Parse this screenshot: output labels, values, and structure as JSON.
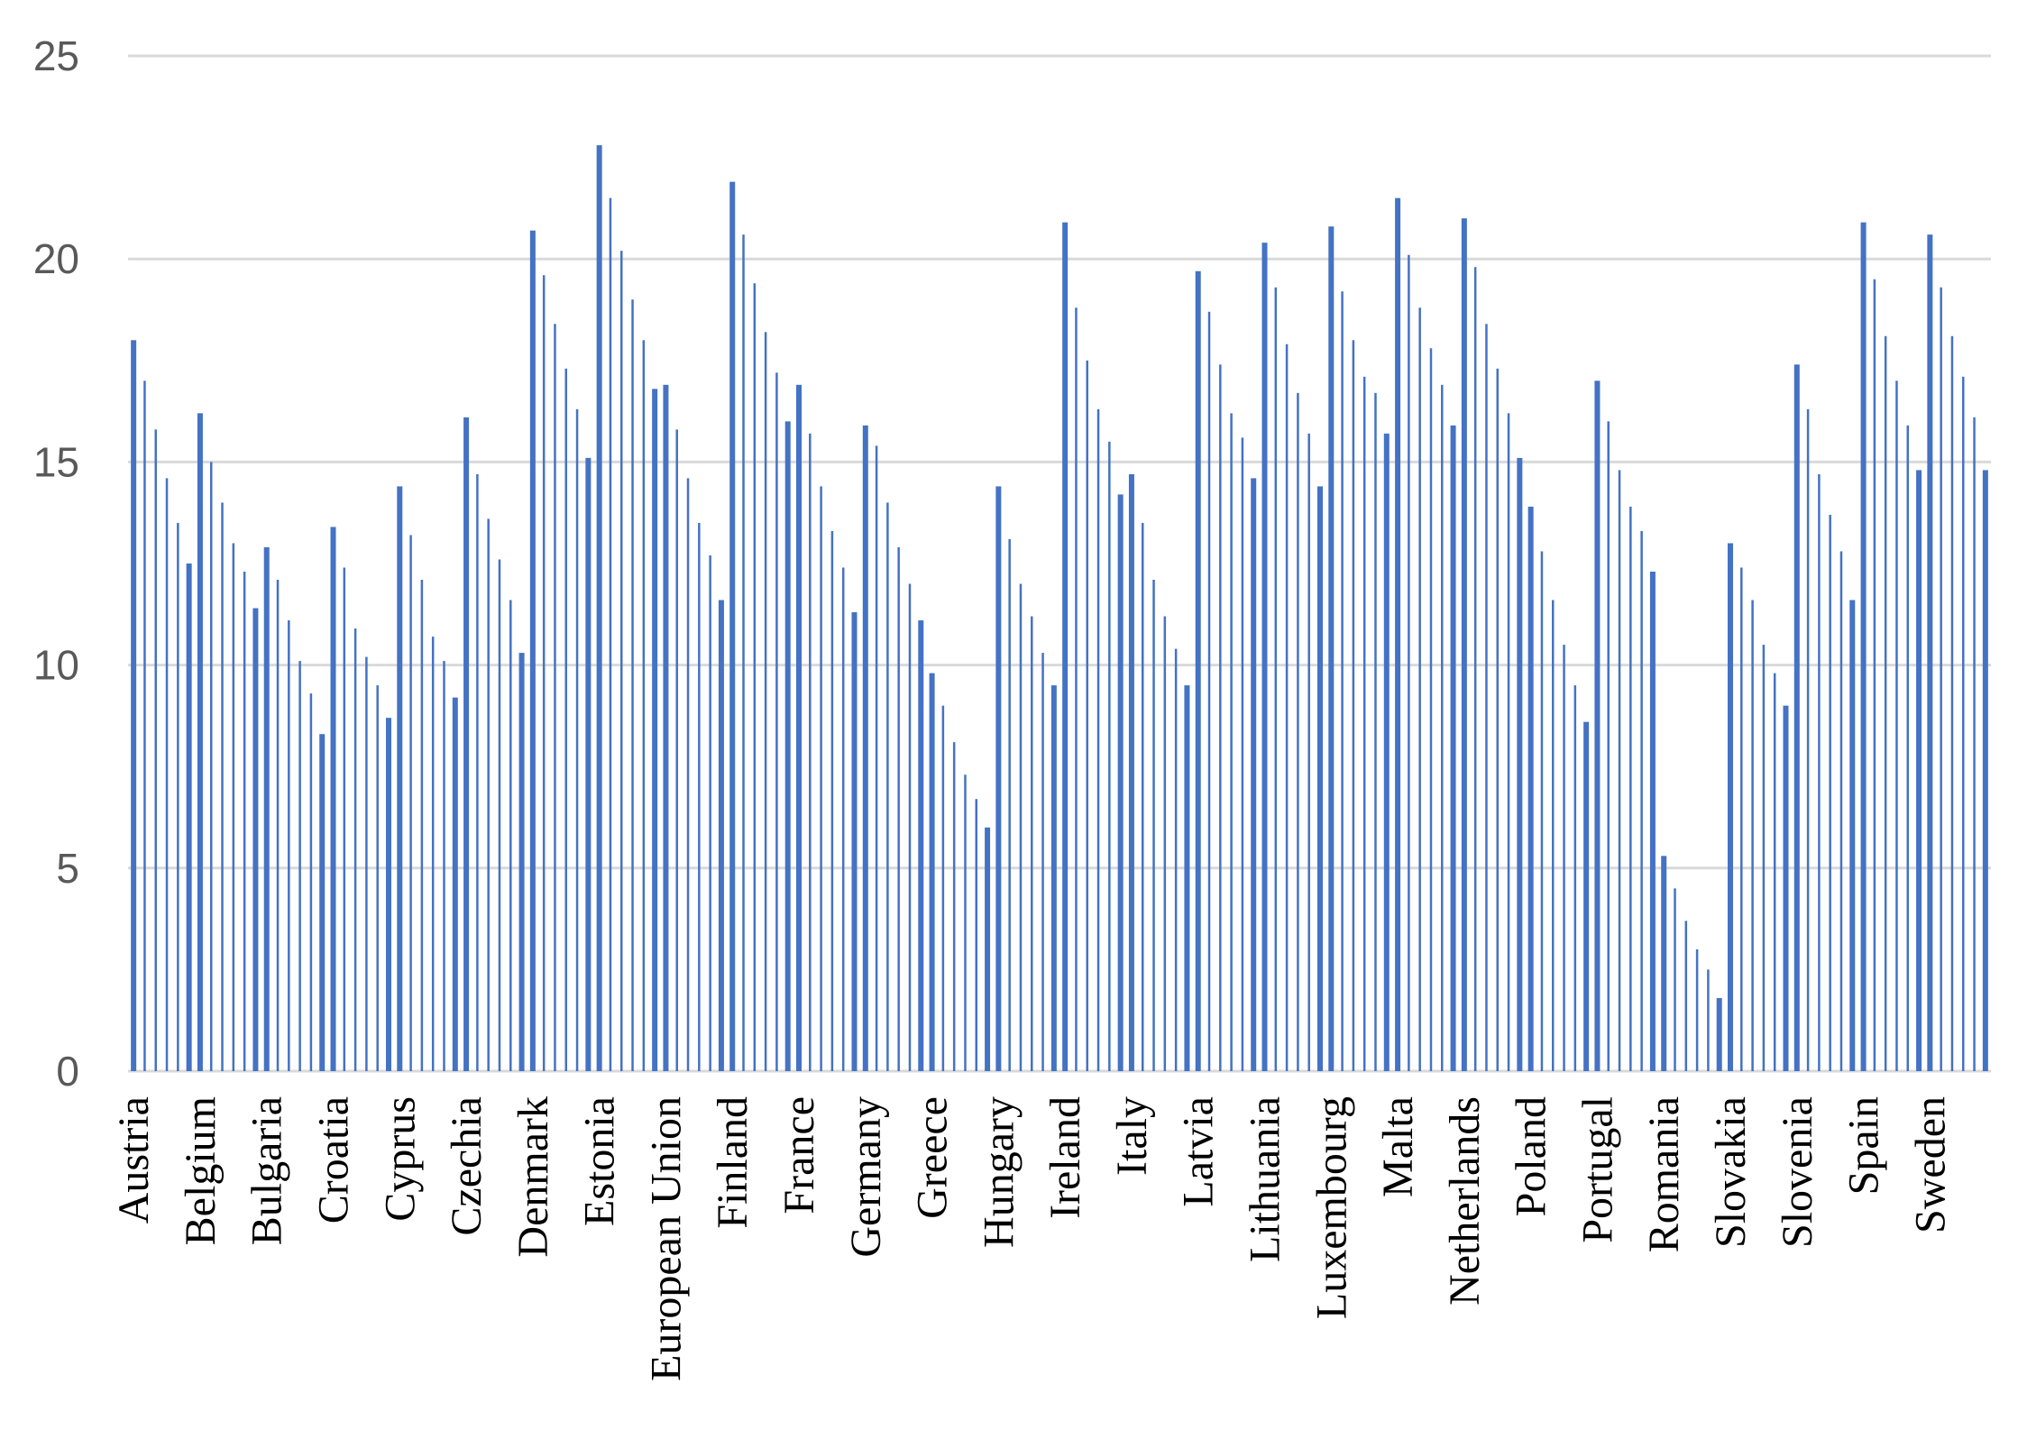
{
  "chart_data": {
    "type": "bar",
    "title": "",
    "xlabel": "",
    "ylabel": "",
    "ylim": [
      0,
      25
    ],
    "yticks": [
      0,
      5,
      10,
      15,
      20,
      25
    ],
    "grid": true,
    "legend": "none",
    "bar_color": "#4472c4",
    "grid_color": "#d9d9d9",
    "categories": [
      "Austria",
      "Belgium",
      "Bulgaria",
      "Croatia",
      "Cyprus",
      "Czechia",
      "Denmark",
      "Estonia",
      "European Union",
      "Finland",
      "France",
      "Germany",
      "Greece",
      "Hungary",
      "Ireland",
      "Italy",
      "Latvia",
      "Lithuania",
      "Luxembourg",
      "Malta",
      "Netherlands",
      "Poland",
      "Portugal",
      "Romania",
      "Slovakia",
      "Slovenia",
      "Spain",
      "Sweden"
    ],
    "values": [
      [
        18.0,
        17.0,
        15.8,
        14.6,
        13.5,
        12.5
      ],
      [
        16.2,
        15.0,
        14.0,
        13.0,
        12.3,
        11.4
      ],
      [
        12.9,
        12.1,
        11.1,
        10.1,
        9.3,
        8.3
      ],
      [
        13.4,
        12.4,
        10.9,
        10.2,
        9.5,
        8.7
      ],
      [
        14.4,
        13.2,
        12.1,
        10.7,
        10.1,
        9.2
      ],
      [
        16.1,
        14.7,
        13.6,
        12.6,
        11.6,
        10.3
      ],
      [
        20.7,
        19.6,
        18.4,
        17.3,
        16.3,
        15.1
      ],
      [
        22.8,
        21.5,
        20.2,
        19.0,
        18.0,
        16.8
      ],
      [
        16.9,
        15.8,
        14.6,
        13.5,
        12.7,
        11.6
      ],
      [
        21.9,
        20.6,
        19.4,
        18.2,
        17.2,
        16.0
      ],
      [
        16.9,
        15.7,
        14.4,
        13.3,
        12.4,
        11.3
      ],
      [
        15.9,
        15.4,
        14.0,
        12.9,
        12.0,
        11.1
      ],
      [
        9.8,
        9.0,
        8.1,
        7.3,
        6.7,
        6.0
      ],
      [
        14.4,
        13.1,
        12.0,
        11.2,
        10.3,
        9.5
      ],
      [
        20.9,
        18.8,
        17.5,
        16.3,
        15.5,
        14.2
      ],
      [
        14.7,
        13.5,
        12.1,
        11.2,
        10.4,
        9.5
      ],
      [
        19.7,
        18.7,
        17.4,
        16.2,
        15.6,
        14.6
      ],
      [
        20.4,
        19.3,
        17.9,
        16.7,
        15.7,
        14.4
      ],
      [
        20.8,
        19.2,
        18.0,
        17.1,
        16.7,
        15.7
      ],
      [
        21.5,
        20.1,
        18.8,
        17.8,
        16.9,
        15.9
      ],
      [
        21.0,
        19.8,
        18.4,
        17.3,
        16.2,
        15.1
      ],
      [
        13.9,
        12.8,
        11.6,
        10.5,
        9.5,
        8.6
      ],
      [
        17.0,
        16.0,
        14.8,
        13.9,
        13.3,
        12.3
      ],
      [
        5.3,
        4.5,
        3.7,
        3.0,
        2.5,
        1.8
      ],
      [
        13.0,
        12.4,
        11.6,
        10.5,
        9.8,
        9.0
      ],
      [
        17.4,
        16.3,
        14.7,
        13.7,
        12.8,
        11.6
      ],
      [
        20.9,
        19.5,
        18.1,
        17.0,
        15.9,
        14.8
      ],
      [
        20.6,
        19.3,
        18.1,
        17.1,
        16.1,
        14.8
      ]
    ]
  }
}
